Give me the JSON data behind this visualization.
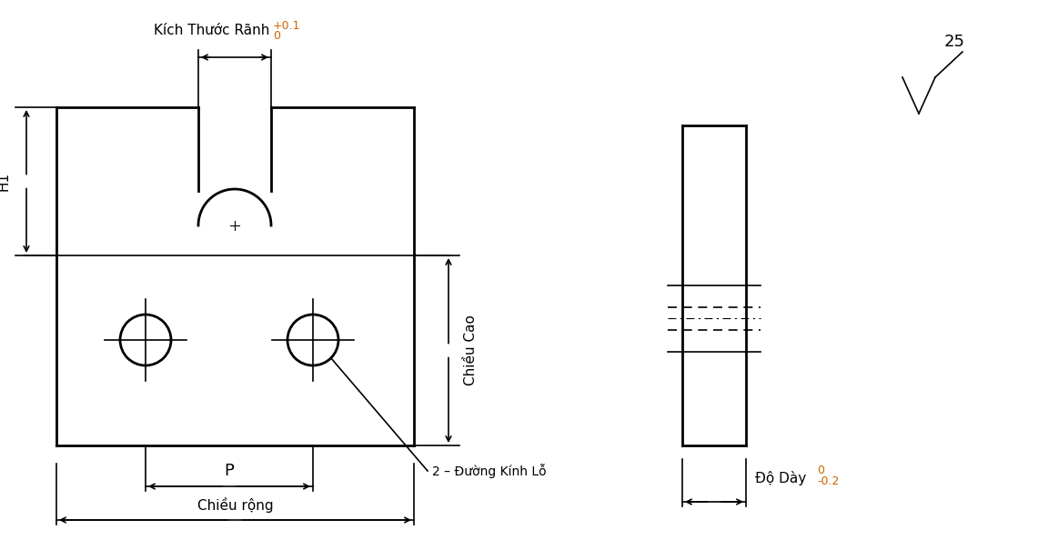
{
  "bg_color": "#ffffff",
  "line_color": "#000000",
  "orange_color": "#cc6600",
  "labels": {
    "kich_thuoc_ranh": "Kích Thước Rãnh",
    "tolerance_plus": "+0.1",
    "tolerance_zero": "0",
    "h1": "H1",
    "chieu_cao": "Chiều Cao",
    "p_label": "P",
    "chieu_rong": "Chiều rộng",
    "annotation_2dk": "2 – Đường Kính Lỗ",
    "do_day": "Độ Dày",
    "do_day_tol_top": "0",
    "do_day_tol_bot": "-0.2",
    "roughness_val": "25"
  }
}
